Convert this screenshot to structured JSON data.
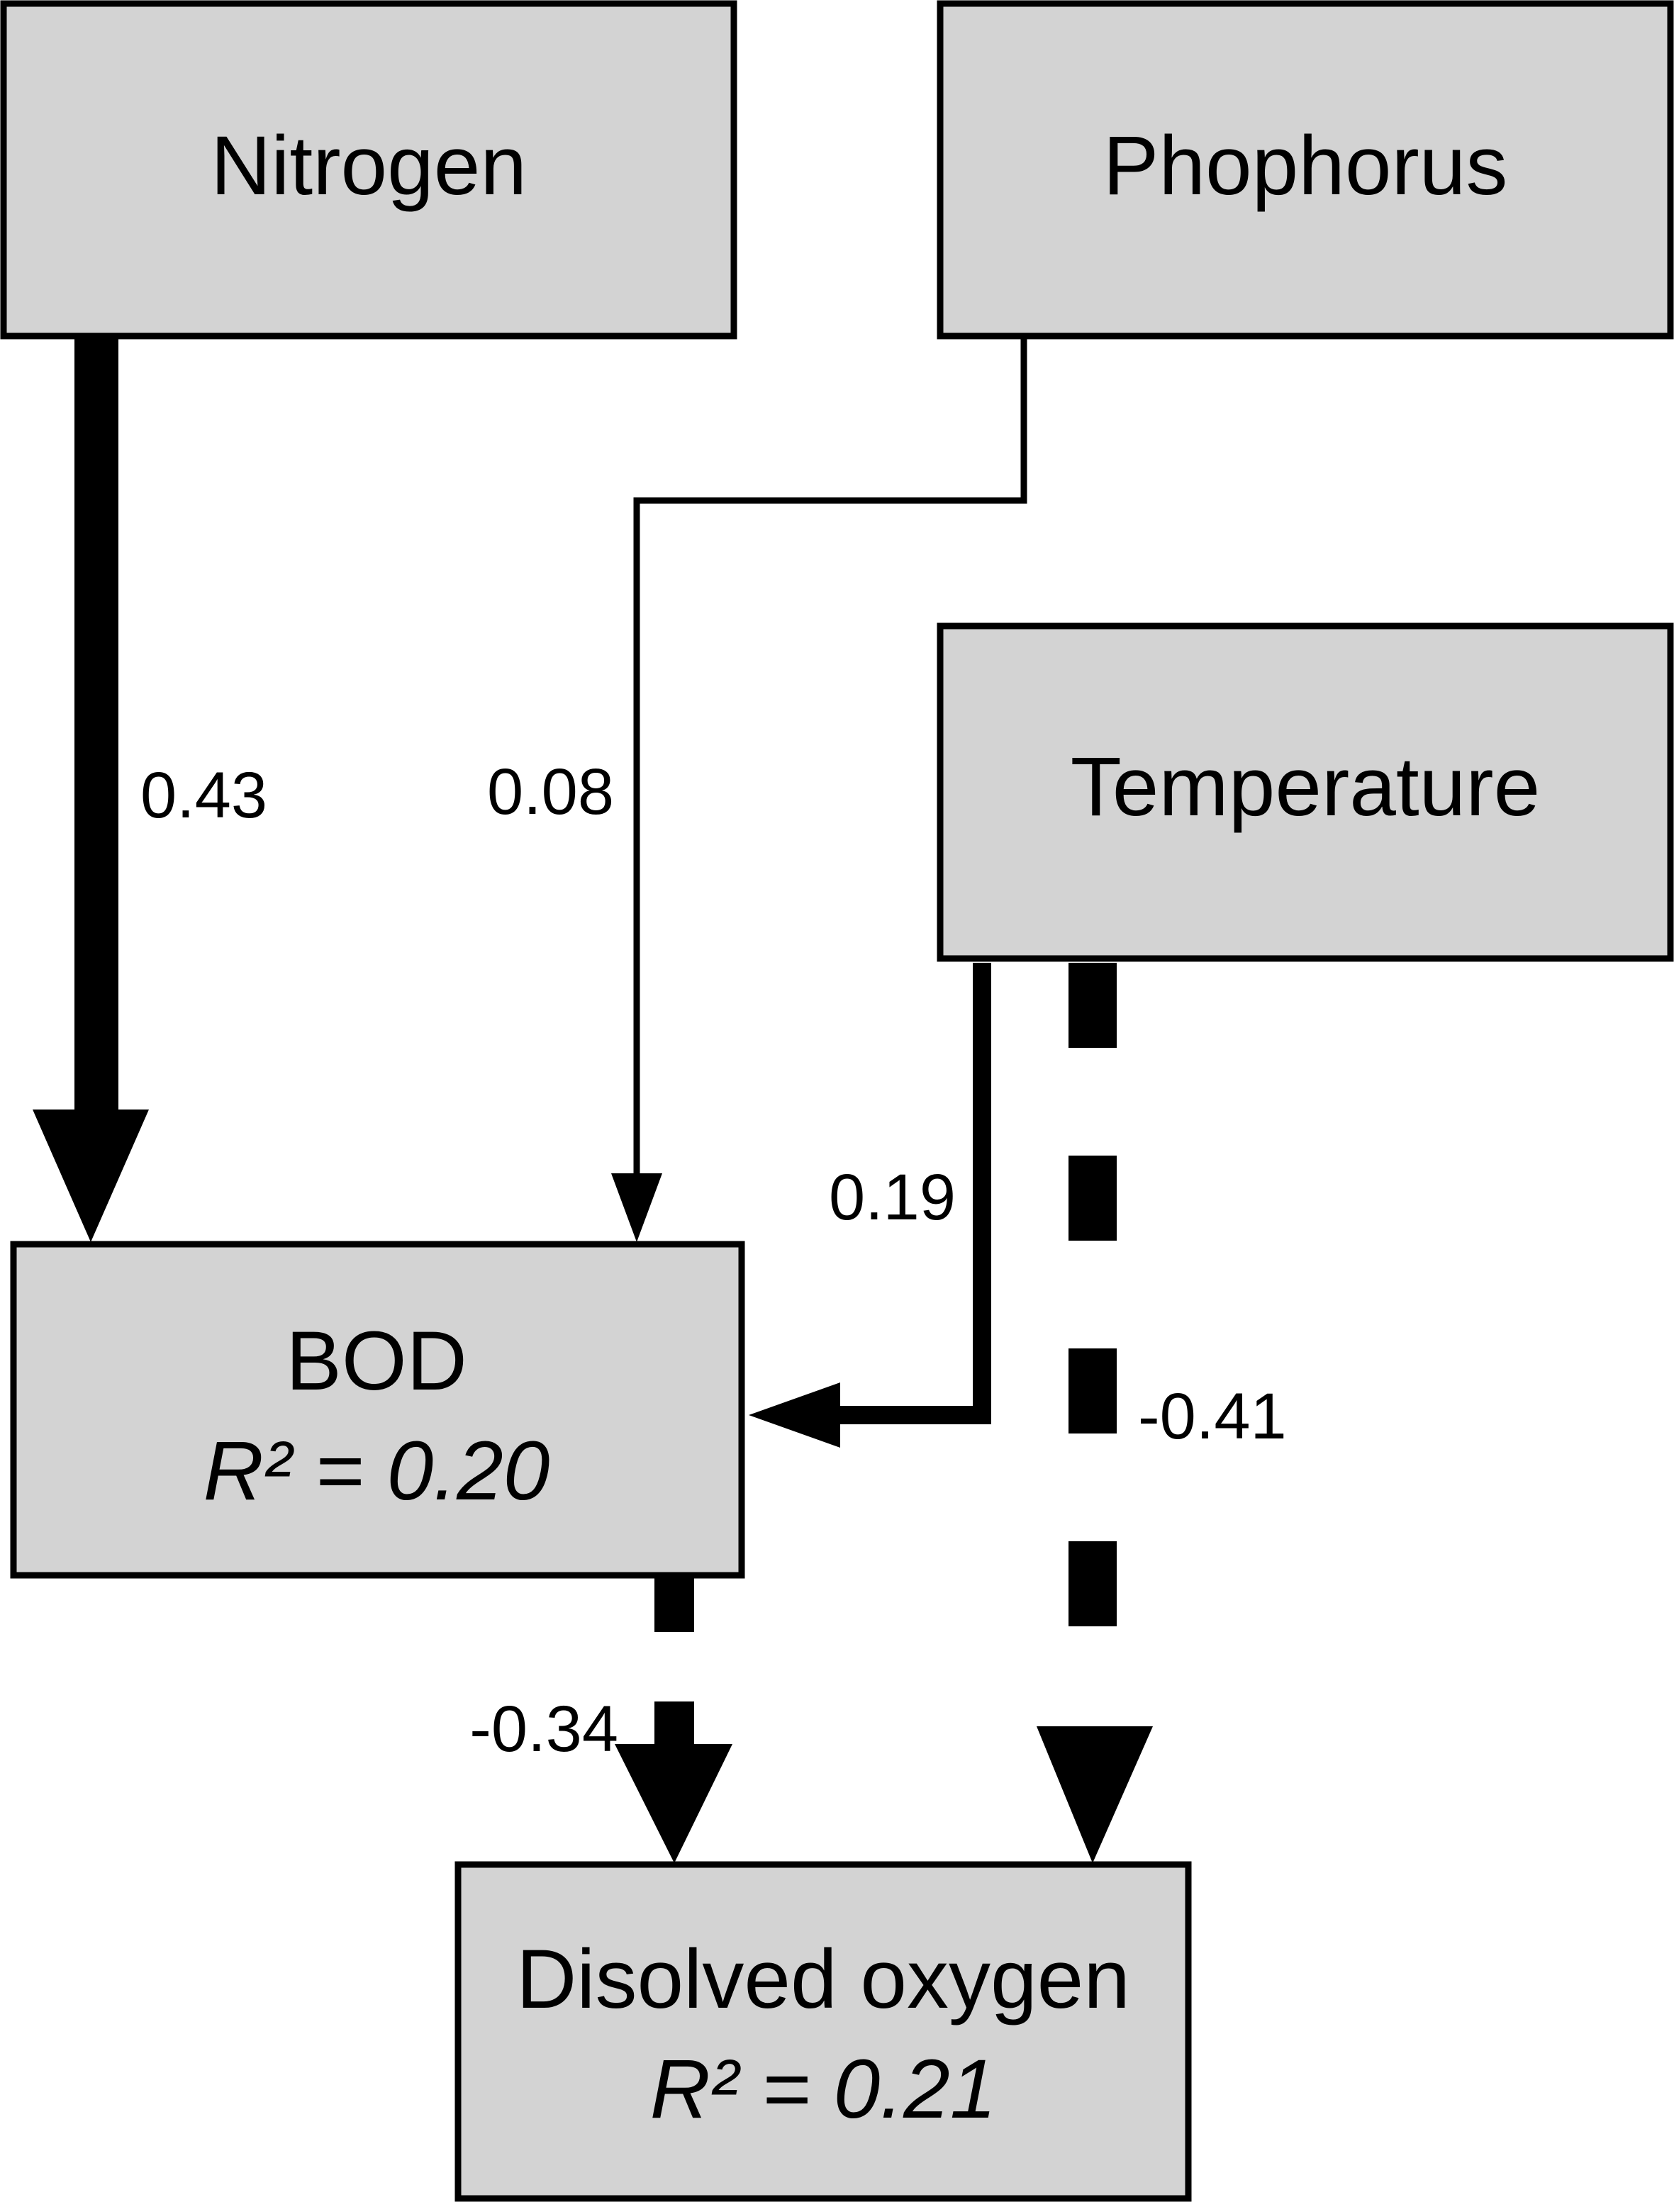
{
  "nodes": {
    "nitrogen": {
      "label": "Nitrogen"
    },
    "phosphorus": {
      "label": "Phophorus"
    },
    "temperature": {
      "label": "Temperature"
    },
    "bod": {
      "label": "BOD",
      "r2": "R² = 0.20"
    },
    "dissolved_oxygen": {
      "label": "Disolved oxygen",
      "r2": "R² = 0.21"
    }
  },
  "edges": {
    "nitrogen_to_bod": {
      "from": "Nitrogen",
      "to": "BOD",
      "coefficient": "0.43",
      "value": 0.43,
      "sign": "positive"
    },
    "phosphorus_to_bod": {
      "from": "Phophorus",
      "to": "BOD",
      "coefficient": "0.08",
      "value": 0.08,
      "sign": "positive"
    },
    "temperature_to_bod": {
      "from": "Temperature",
      "to": "BOD",
      "coefficient": "0.19",
      "value": 0.19,
      "sign": "positive"
    },
    "temperature_to_do": {
      "from": "Temperature",
      "to": "Disolved oxygen",
      "coefficient": "-0.41",
      "value": -0.41,
      "sign": "negative"
    },
    "bod_to_do": {
      "from": "BOD",
      "to": "Disolved oxygen",
      "coefficient": "-0.34",
      "value": -0.34,
      "sign": "negative"
    }
  },
  "colors": {
    "box_fill": "#d3d3d3",
    "line": "#000000",
    "background": "#ffffff"
  }
}
